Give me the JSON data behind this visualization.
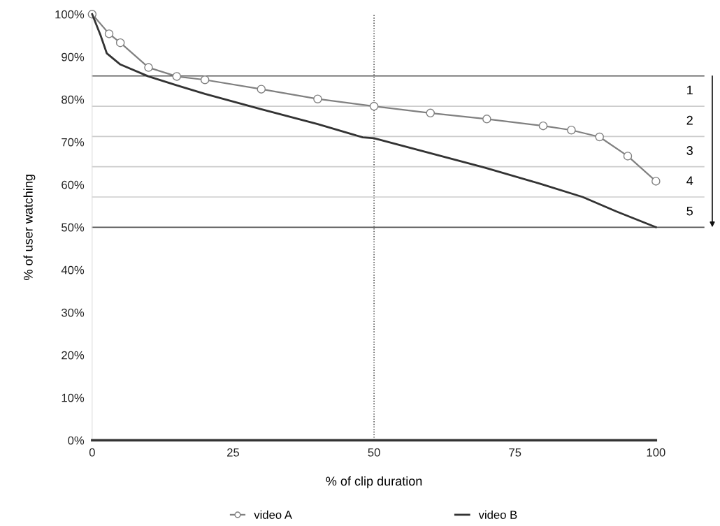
{
  "chart_data": {
    "type": "line",
    "xlabel": "% of clip duration",
    "ylabel": "% of user watching",
    "xlim": [
      0,
      100
    ],
    "xticks": [
      0,
      25,
      50,
      75,
      100
    ],
    "ylim": [
      0,
      100
    ],
    "yticks": [
      {
        "value": 0,
        "label": "0%"
      },
      {
        "value": 10,
        "label": "10%"
      },
      {
        "value": 20,
        "label": "20%"
      },
      {
        "value": 30,
        "label": "30%"
      },
      {
        "value": 40,
        "label": "40%"
      },
      {
        "value": 50,
        "label": "50%"
      },
      {
        "value": 60,
        "label": "60%"
      },
      {
        "value": 70,
        "label": "70%"
      },
      {
        "value": 80,
        "label": "80%"
      },
      {
        "value": 90,
        "label": "90%"
      },
      {
        "value": 100,
        "label": "100%"
      }
    ],
    "series": [
      {
        "name": "video A",
        "color": "#808080",
        "marker": "circle",
        "x": [
          0,
          3,
          5,
          10,
          15,
          20,
          30,
          40,
          50,
          60,
          70,
          80,
          85,
          90,
          95,
          100
        ],
        "values": [
          100,
          95.4,
          93.3,
          87.5,
          85.4,
          84.6,
          82.4,
          80.1,
          78.4,
          76.8,
          75.4,
          73.8,
          72.8,
          71.2,
          66.7,
          60.8
        ]
      },
      {
        "name": "video B",
        "color": "#333333",
        "marker": "none",
        "x": [
          0,
          1.5,
          2.6,
          5,
          10,
          15,
          20,
          30,
          40,
          48,
          50,
          69.6,
          79.5,
          87,
          93,
          100
        ],
        "values": [
          100,
          95,
          90.8,
          88.2,
          85.4,
          83.3,
          81.3,
          77.7,
          74.2,
          71.1,
          70.9,
          64,
          60.2,
          57.1,
          53.7,
          50
        ]
      }
    ],
    "ref_lines": [
      {
        "axis": "x",
        "value": 50,
        "color": "#333333",
        "line_style": "dotted"
      },
      {
        "axis": "y",
        "value": 85.5,
        "color": "#555555"
      },
      {
        "axis": "y",
        "value": 78.4,
        "color": "#cccccc"
      },
      {
        "axis": "y",
        "value": 71.3,
        "color": "#cccccc"
      },
      {
        "axis": "y",
        "value": 64.2,
        "color": "#cccccc"
      },
      {
        "axis": "y",
        "value": 57.1,
        "color": "#cccccc"
      },
      {
        "axis": "y",
        "value": 50,
        "color": "#555555"
      }
    ],
    "annotations": [
      "1",
      "2",
      "3",
      "4",
      "5"
    ],
    "legend": "bottom",
    "grid": false
  }
}
